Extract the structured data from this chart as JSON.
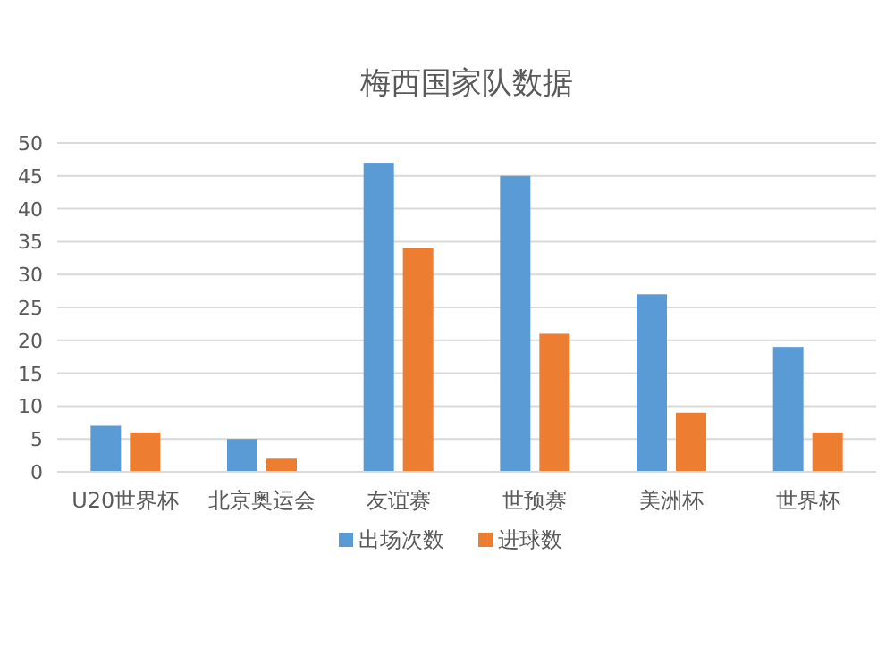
{
  "chart_data": {
    "type": "bar",
    "title": "梅西国家队数据",
    "categories": [
      "U20世界杯",
      "北京奥运会",
      "友谊赛",
      "世预赛",
      "美洲杯",
      "世界杯"
    ],
    "series": [
      {
        "name": "出场次数",
        "color": "#5b9bd5",
        "values": [
          7,
          5,
          47,
          45,
          27,
          19
        ]
      },
      {
        "name": "进球数",
        "color": "#ed7d31",
        "values": [
          6,
          2,
          34,
          21,
          9,
          6
        ]
      }
    ],
    "ylim": [
      0,
      50
    ],
    "yticks": [
      0,
      5,
      10,
      15,
      20,
      25,
      30,
      35,
      40,
      45,
      50
    ],
    "grid": "y",
    "legend": "bottom"
  }
}
